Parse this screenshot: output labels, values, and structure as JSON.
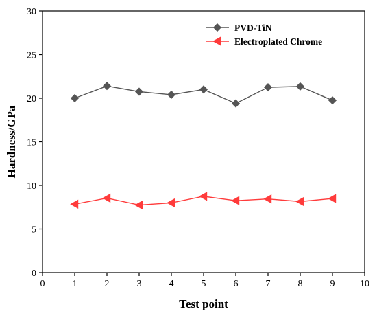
{
  "chart_data": {
    "type": "line",
    "title": "",
    "xlabel": "Test point",
    "ylabel": "Hardness/GPa",
    "xlim": [
      0,
      10
    ],
    "ylim": [
      0,
      30
    ],
    "xticks": [
      0,
      1,
      2,
      3,
      4,
      5,
      6,
      7,
      8,
      9,
      10
    ],
    "yticks": [
      0,
      5,
      10,
      15,
      20,
      25,
      30
    ],
    "grid": false,
    "legend_position": "top-right",
    "x": [
      1,
      2,
      3,
      4,
      5,
      6,
      7,
      8,
      9
    ],
    "series": [
      {
        "name": "PVD-TiN",
        "values": [
          20.0,
          21.4,
          20.75,
          20.4,
          21.0,
          19.4,
          21.25,
          21.35,
          19.75
        ],
        "color": "#555555",
        "marker": "diamond"
      },
      {
        "name": "Electroplated Chrome",
        "values": [
          7.85,
          8.55,
          7.75,
          8.0,
          8.75,
          8.25,
          8.45,
          8.15,
          8.5
        ],
        "color": "#ff3b3b",
        "marker": "triangle-left"
      }
    ]
  }
}
